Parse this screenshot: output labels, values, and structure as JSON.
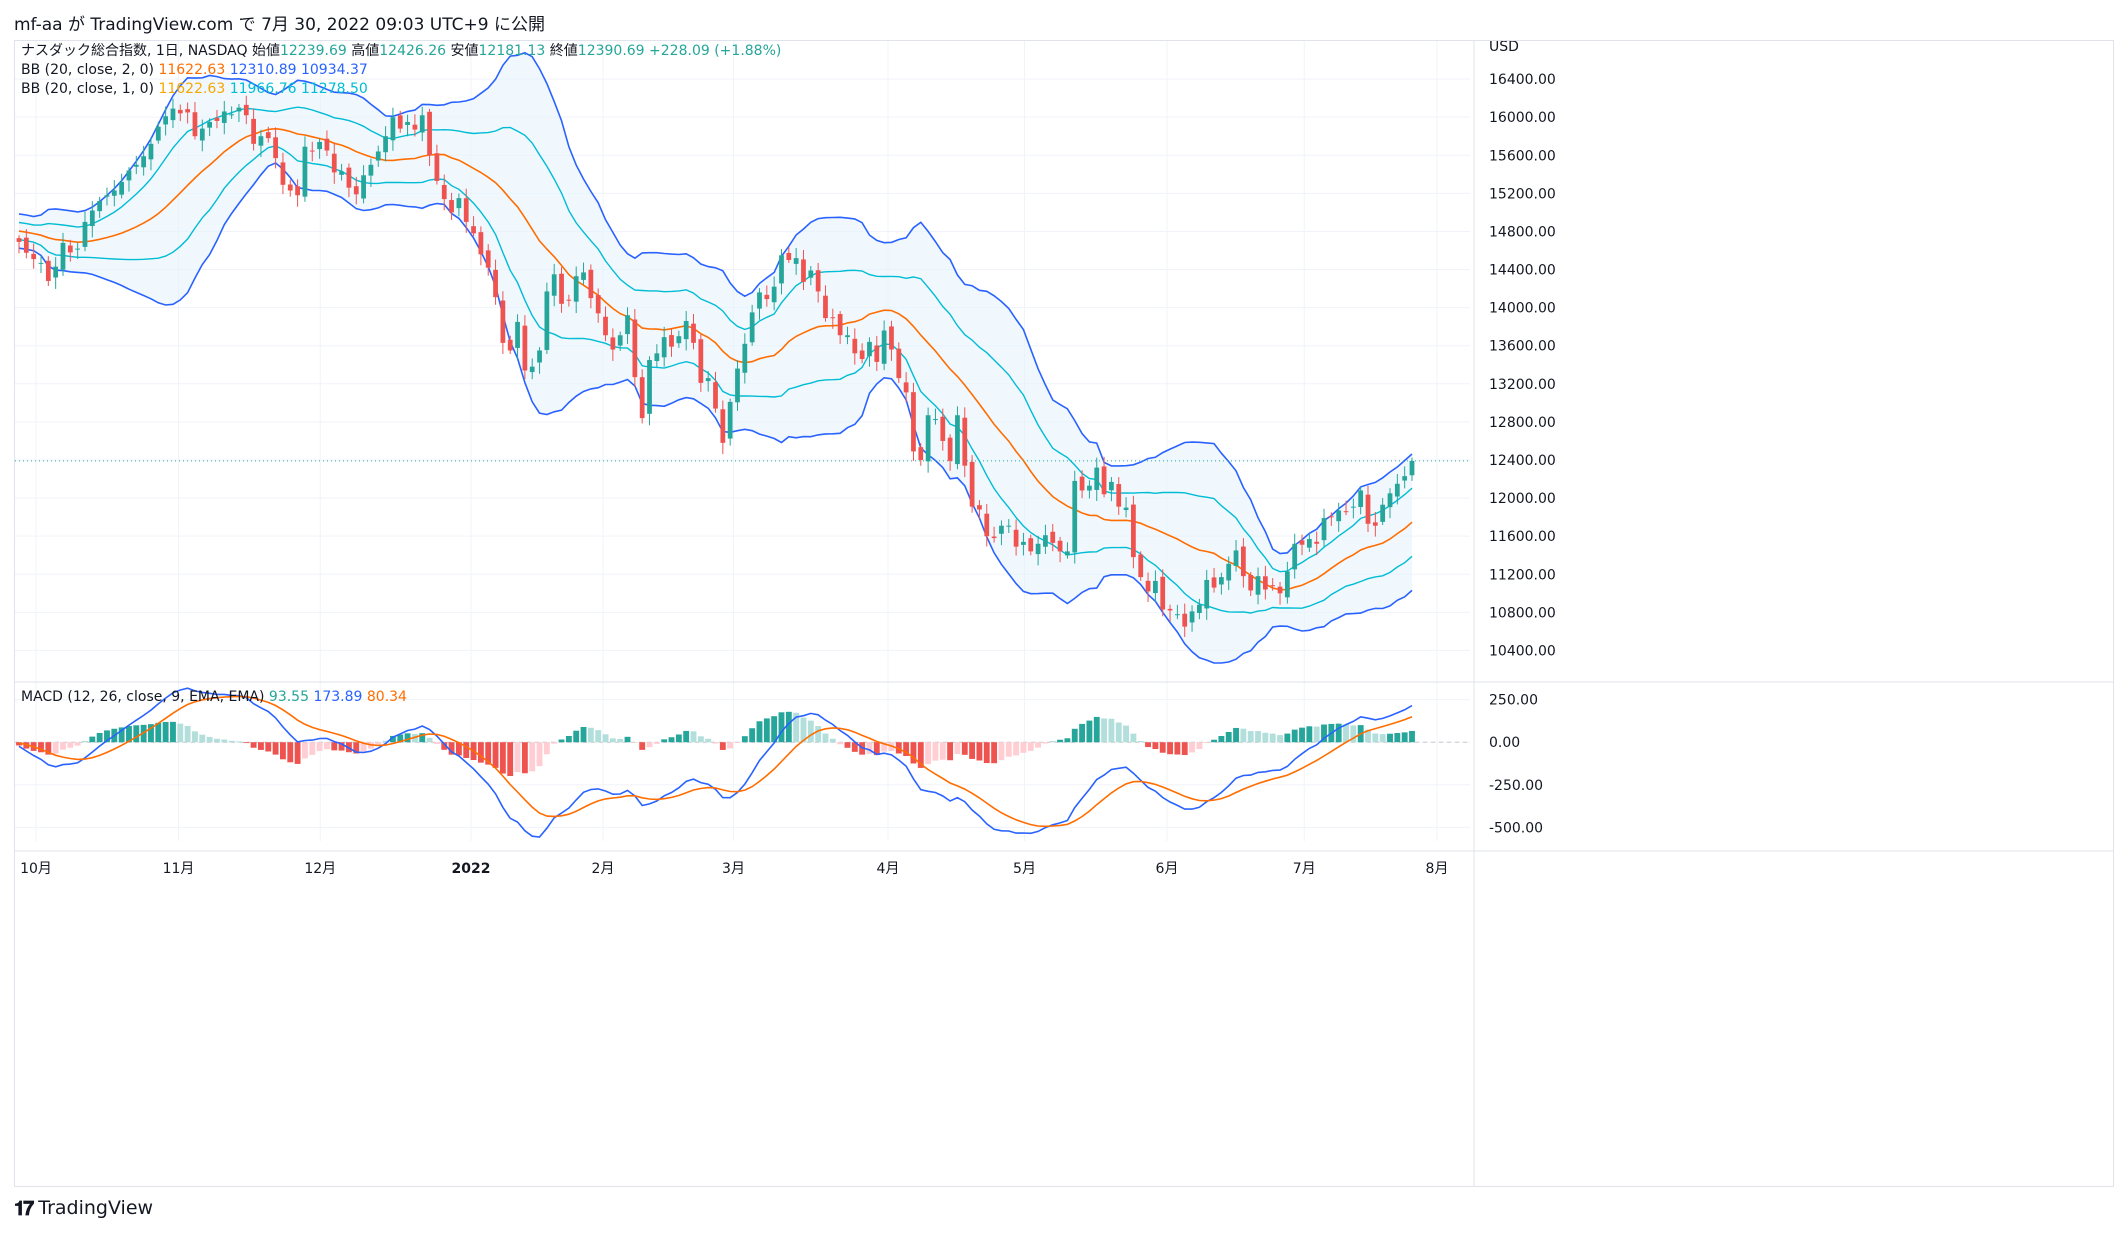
{
  "publish_line": "mf-aa が TradingView.com で 7月 30, 2022 09:03 UTC+9 に公開",
  "brand": "TradingView",
  "brand_icon": "tradingview-logo-icon",
  "legend": {
    "symbol": "ナスダック総合指数, 1日, NASDAQ",
    "open_label": "始値",
    "open": "12239.69",
    "high_label": "高値",
    "high": "12426.26",
    "low_label": "安値",
    "low": "12181.13",
    "close_label": "終値",
    "close": "12390.69",
    "change": "+228.09 (+1.88%)",
    "bb2_name": "BB (20, close, 2, 0)",
    "bb2_values": [
      "11622.63",
      "12310.89",
      "10934.37"
    ],
    "bb1_name": "BB (20, close, 1, 0)",
    "bb1_values": [
      "11622.63",
      "11966.76",
      "11278.50"
    ],
    "macd_name": "MACD (12, 26, close, 9, EMA, EMA)",
    "macd_values": [
      "93.55",
      "173.89",
      "80.34"
    ]
  },
  "colors": {
    "up": "#26a69a",
    "down": "#ef5350",
    "up_light": "#b2dfdb",
    "down_light": "#ffcdd2",
    "basis": "#ff6d00",
    "bb2": "#2962ff",
    "bb1": "#00bcd4",
    "macd_line": "#2962ff",
    "signal_line": "#ff6d00",
    "bb_fill": "#e3f2fd"
  },
  "chart_data": [
    {
      "type": "candlestick",
      "title": "ナスダック総合指数, 1日, NASDAQ",
      "currency": "USD",
      "ylim": [
        10100,
        16800
      ],
      "y_ticks": [
        "16400.00",
        "16000.00",
        "15600.00",
        "15200.00",
        "14800.00",
        "14400.00",
        "14000.00",
        "13600.00",
        "13200.00",
        "12800.00",
        "12400.00",
        "12000.00",
        "11600.00",
        "11200.00",
        "10800.00",
        "10400.00"
      ],
      "last_price": 12390.69,
      "x_labels": [
        "10月",
        "11月",
        "12月",
        "2022",
        "2月",
        "3月",
        "4月",
        "5月",
        "6月",
        "7月",
        "8月"
      ],
      "closes": [
        14690,
        14576,
        14510,
        14470,
        14280,
        14430,
        14680,
        14580,
        14620,
        14900,
        15020,
        15120,
        15180,
        15230,
        15320,
        15440,
        15500,
        15590,
        15720,
        15900,
        16010,
        16090,
        16040,
        16050,
        15800,
        15880,
        15950,
        15960,
        16060,
        16030,
        16100,
        16020,
        15720,
        15800,
        15780,
        15570,
        15290,
        15230,
        15180,
        15690,
        15640,
        15740,
        15650,
        15420,
        15430,
        15260,
        15190,
        15390,
        15500,
        15640,
        15800,
        16000,
        15880,
        15950,
        15870,
        16020,
        15600,
        15330,
        15140,
        15000,
        15150,
        14900,
        14780,
        14560,
        14420,
        14110,
        13630,
        13550,
        13850,
        13340,
        13380,
        13550,
        14170,
        14350,
        14040,
        14080,
        14330,
        14370,
        14100,
        13940,
        13710,
        13560,
        13710,
        13920,
        13270,
        12840,
        13450,
        13520,
        13690,
        13590,
        13700,
        13860,
        13630,
        13210,
        13260,
        12940,
        12580,
        13010,
        13360,
        13620,
        13950,
        14160,
        14090,
        14220,
        14550,
        14500,
        14520,
        14270,
        14390,
        14170,
        13890,
        13890,
        13710,
        13710,
        13520,
        13460,
        13640,
        13430,
        13760,
        13560,
        13260,
        13110,
        12490,
        12400,
        12870,
        12830,
        12600,
        12390,
        12870,
        12340,
        11910,
        11880,
        11600,
        11580,
        11710,
        11710,
        11490,
        11540,
        11440,
        11520,
        11610,
        11530,
        11440,
        11440,
        12180,
        12080,
        12130,
        12320,
        12040,
        12170,
        11910,
        11900,
        11380,
        11170,
        11020,
        11130,
        10830,
        10820,
        10780,
        10650,
        10810,
        10880,
        11140,
        11060,
        11170,
        11310,
        11450,
        11180,
        11030,
        11180,
        11040,
        11080,
        11000,
        11230,
        11520,
        11510,
        11570,
        11520,
        11790,
        11800,
        11870,
        11860,
        11910,
        12080,
        11730,
        11710,
        11930,
        12050,
        12150,
        12230,
        12390
      ],
      "series": [
        "Candles",
        "BB (20, close, 2, 0)",
        "BB (20, close, 1, 0)"
      ]
    },
    {
      "type": "line+histogram",
      "title": "MACD (12, 26, close, 9, EMA, EMA)",
      "ylim": [
        -580,
        330
      ],
      "y_ticks": [
        "250.00",
        "0.00",
        "-250.00",
        "-500.00"
      ],
      "series": [
        "MACD",
        "Signal",
        "Histogram"
      ]
    }
  ]
}
